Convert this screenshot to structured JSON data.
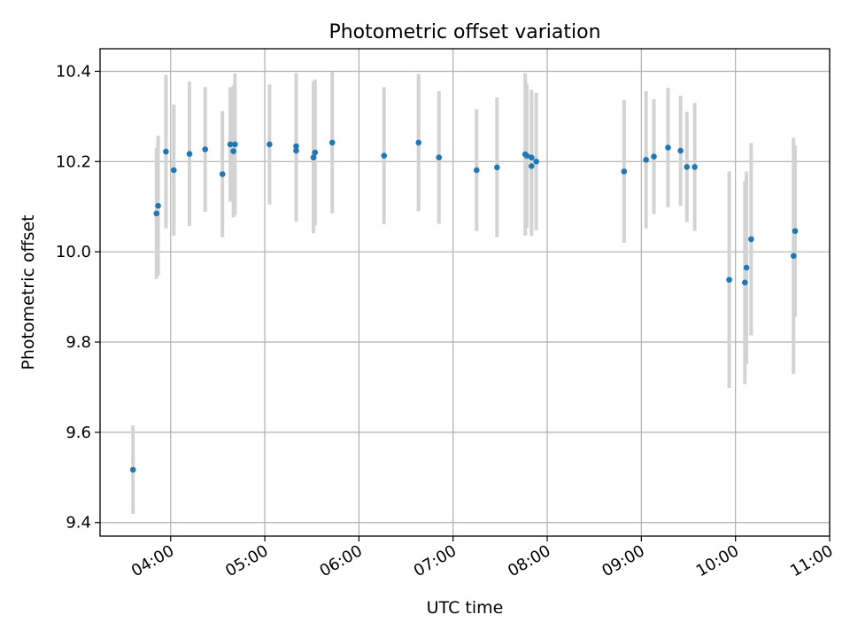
{
  "chart_data": {
    "type": "scatter",
    "title": "Photometric offset variation",
    "xlabel": "UTC time",
    "ylabel": "Photometric offset",
    "x_axis_format": "HH:MM",
    "x_ticks": [
      "04:00",
      "05:00",
      "06:00",
      "07:00",
      "08:00",
      "09:00",
      "10:00",
      "11:00"
    ],
    "xlim": [
      "03:15",
      "11:00"
    ],
    "y_ticks": [
      "9.4",
      "9.6",
      "9.8",
      "10.0",
      "10.2",
      "10.4"
    ],
    "ylim": [
      9.37,
      10.45
    ],
    "grid": true,
    "point_color": "#1f77b4",
    "errorbar_color": "#d3d3d3",
    "series": [
      {
        "points": [
          {
            "time": "03:36",
            "y": 9.517,
            "err": 0.098
          },
          {
            "time": "03:51",
            "y": 10.085,
            "err": 0.145
          },
          {
            "time": "03:52",
            "y": 10.102,
            "err": 0.155
          },
          {
            "time": "03:57",
            "y": 10.222,
            "err": 0.17
          },
          {
            "time": "04:02",
            "y": 10.181,
            "err": 0.145
          },
          {
            "time": "04:12",
            "y": 10.217,
            "err": 0.16
          },
          {
            "time": "04:22",
            "y": 10.227,
            "err": 0.138
          },
          {
            "time": "04:33",
            "y": 10.172,
            "err": 0.14
          },
          {
            "time": "04:38",
            "y": 10.238,
            "err": 0.127
          },
          {
            "time": "04:40",
            "y": 10.223,
            "err": 0.147
          },
          {
            "time": "04:41",
            "y": 10.238,
            "err": 0.157
          },
          {
            "time": "05:03",
            "y": 10.238,
            "err": 0.133
          },
          {
            "time": "05:20",
            "y": 10.224,
            "err": 0.157
          },
          {
            "time": "05:20",
            "y": 10.234,
            "err": 0.162
          },
          {
            "time": "05:31",
            "y": 10.209,
            "err": 0.168
          },
          {
            "time": "05:32",
            "y": 10.22,
            "err": 0.162
          },
          {
            "time": "05:43",
            "y": 10.242,
            "err": 0.157
          },
          {
            "time": "06:16",
            "y": 10.213,
            "err": 0.152
          },
          {
            "time": "06:38",
            "y": 10.242,
            "err": 0.152
          },
          {
            "time": "06:51",
            "y": 10.209,
            "err": 0.147
          },
          {
            "time": "07:15",
            "y": 10.181,
            "err": 0.135
          },
          {
            "time": "07:28",
            "y": 10.187,
            "err": 0.155
          },
          {
            "time": "07:46",
            "y": 10.216,
            "err": 0.18
          },
          {
            "time": "07:47",
            "y": 10.213,
            "err": 0.16
          },
          {
            "time": "07:50",
            "y": 10.209,
            "err": 0.15
          },
          {
            "time": "07:50",
            "y": 10.19,
            "err": 0.155
          },
          {
            "time": "07:53",
            "y": 10.2,
            "err": 0.152
          },
          {
            "time": "08:49",
            "y": 10.178,
            "err": 0.158
          },
          {
            "time": "09:03",
            "y": 10.204,
            "err": 0.152
          },
          {
            "time": "09:08",
            "y": 10.211,
            "err": 0.127
          },
          {
            "time": "09:17",
            "y": 10.231,
            "err": 0.132
          },
          {
            "time": "09:25",
            "y": 10.224,
            "err": 0.122
          },
          {
            "time": "09:29",
            "y": 10.188,
            "err": 0.122
          },
          {
            "time": "09:34",
            "y": 10.188,
            "err": 0.142
          },
          {
            "time": "09:56",
            "y": 9.938,
            "err": 0.24
          },
          {
            "time": "10:06",
            "y": 9.932,
            "err": 0.225
          },
          {
            "time": "10:07",
            "y": 9.965,
            "err": 0.213
          },
          {
            "time": "10:10",
            "y": 10.028,
            "err": 0.213
          },
          {
            "time": "10:37",
            "y": 9.991,
            "err": 0.262
          },
          {
            "time": "10:38",
            "y": 10.046,
            "err": 0.19
          }
        ]
      }
    ]
  }
}
